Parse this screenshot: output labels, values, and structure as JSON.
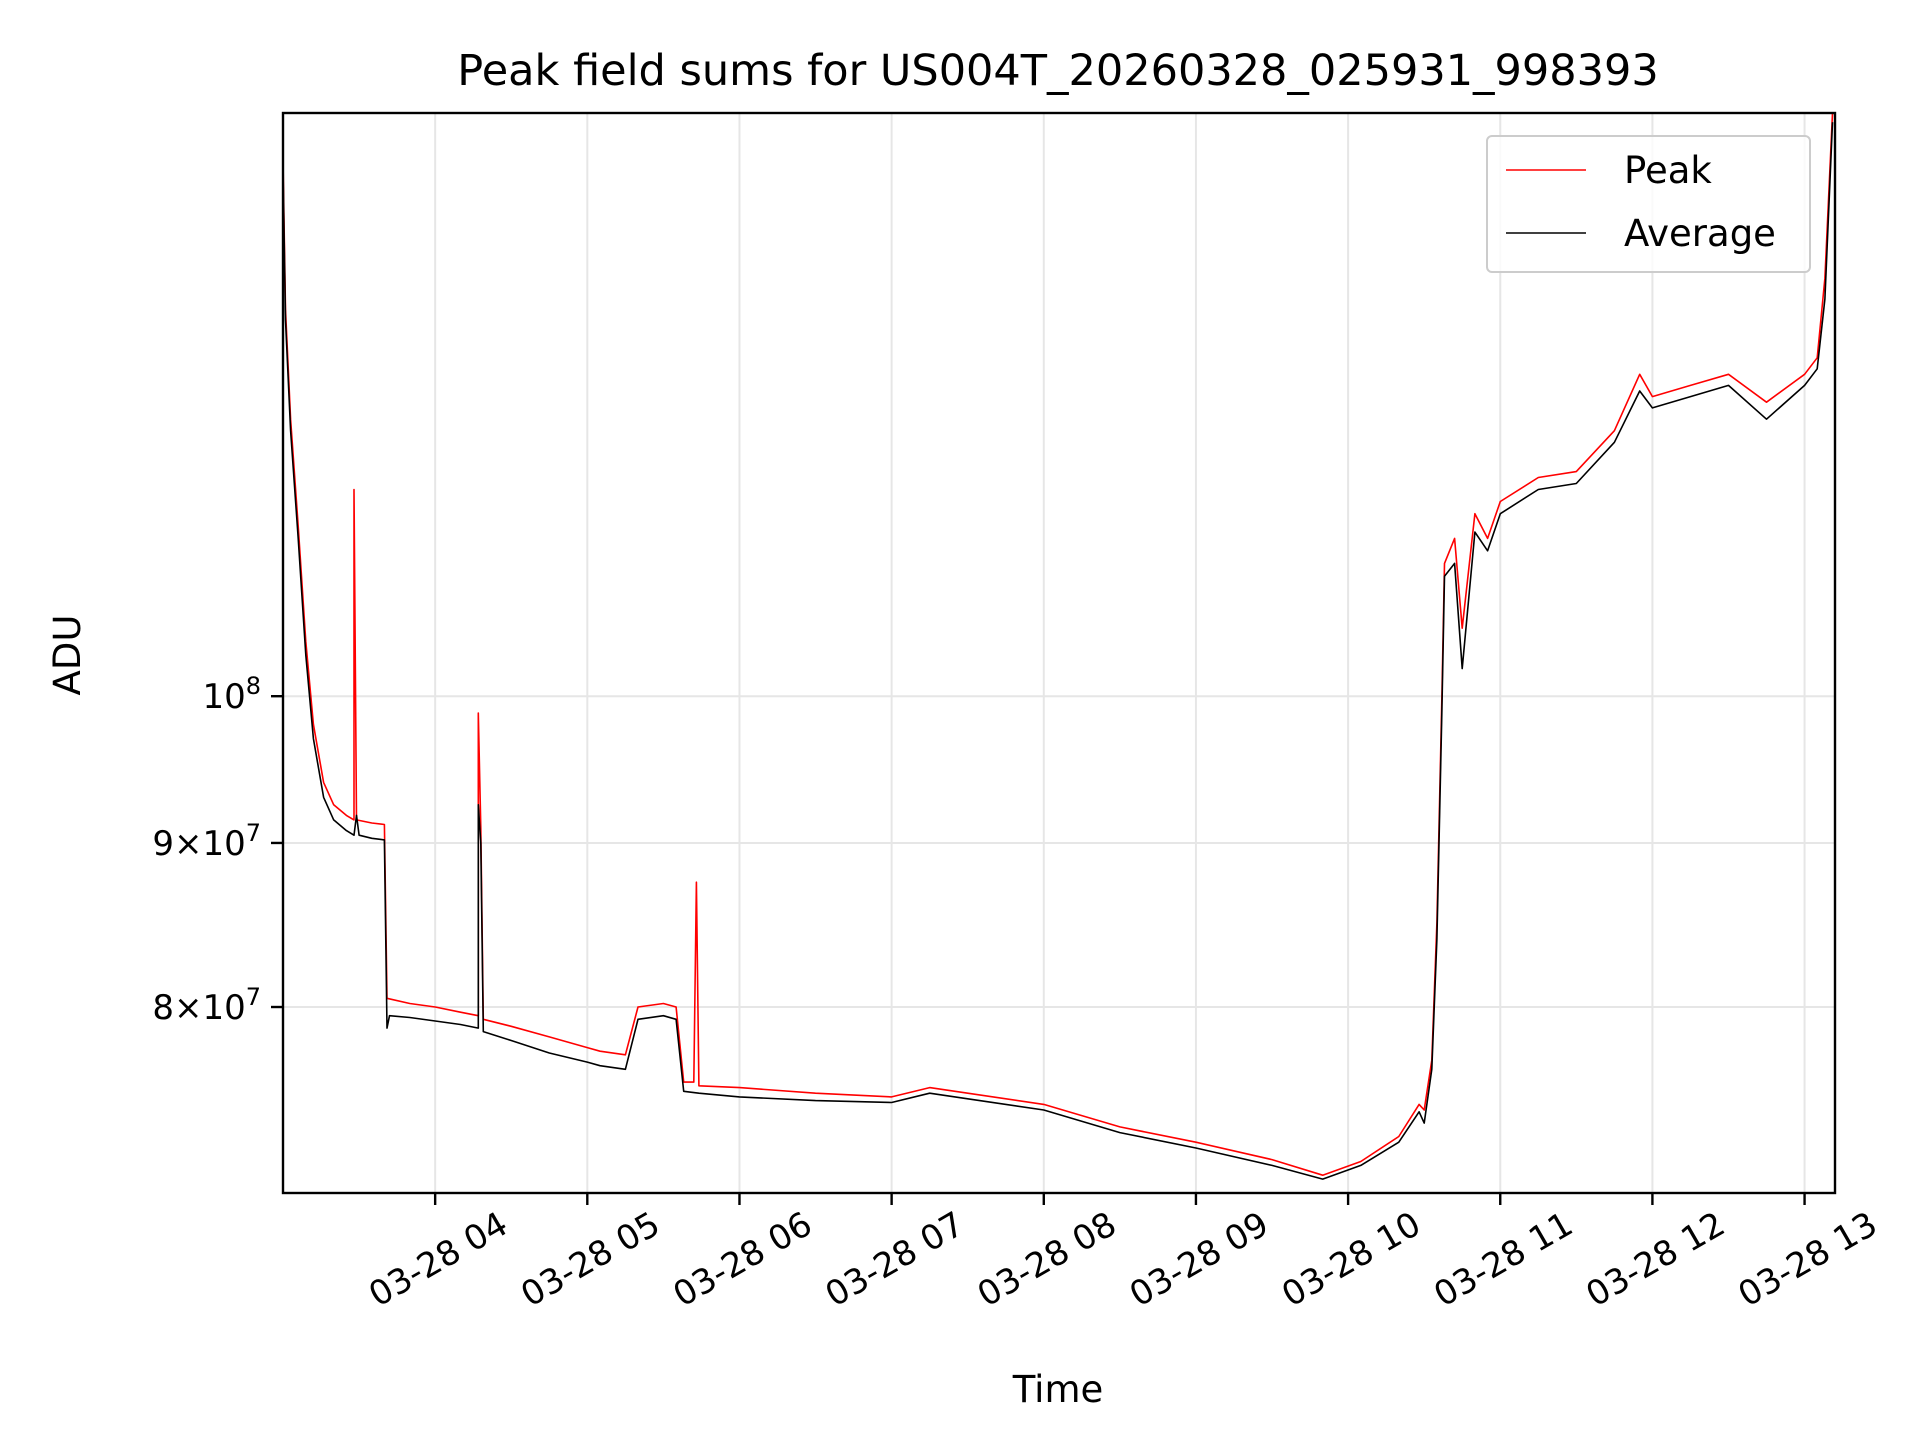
{
  "chart_data": {
    "type": "line",
    "title": "Peak field sums for US004T_20260328_025931_998393",
    "xlabel": "Time",
    "ylabel": "ADU",
    "yscale": "log",
    "xlim": [
      "2026-03-28 03:00",
      "2026-03-28 13:12"
    ],
    "ylim": [
      70000000,
      152000000
    ],
    "grid": true,
    "legend_position": "top-right",
    "x_ticks": [
      {
        "t": "2026-03-28 04:00",
        "label": "03-28 04"
      },
      {
        "t": "2026-03-28 05:00",
        "label": "03-28 05"
      },
      {
        "t": "2026-03-28 06:00",
        "label": "03-28 06"
      },
      {
        "t": "2026-03-28 07:00",
        "label": "03-28 07"
      },
      {
        "t": "2026-03-28 08:00",
        "label": "03-28 08"
      },
      {
        "t": "2026-03-28 09:00",
        "label": "03-28 09"
      },
      {
        "t": "2026-03-28 10:00",
        "label": "03-28 10"
      },
      {
        "t": "2026-03-28 11:00",
        "label": "03-28 11"
      },
      {
        "t": "2026-03-28 12:00",
        "label": "03-28 12"
      },
      {
        "t": "2026-03-28 13:00",
        "label": "03-28 13"
      }
    ],
    "y_ticks": [
      {
        "value": 80000000,
        "coef": "8",
        "times": "×",
        "base": "10",
        "exp": "7"
      },
      {
        "value": 90000000,
        "coef": "9",
        "times": "×",
        "base": "10",
        "exp": "7"
      },
      {
        "value": 100000000,
        "coef": "",
        "times": "",
        "base": "10",
        "exp": "8"
      }
    ],
    "series": [
      {
        "name": "Peak",
        "color": "#ff0000",
        "points": [
          [
            "2026-03-28 03:00",
            147000000
          ],
          [
            "2026-03-28 03:01",
            132000000
          ],
          [
            "2026-03-28 03:03",
            122000000
          ],
          [
            "2026-03-28 03:06",
            113000000
          ],
          [
            "2026-03-28 03:09",
            104000000
          ],
          [
            "2026-03-28 03:12",
            98000000
          ],
          [
            "2026-03-28 03:16",
            94000000
          ],
          [
            "2026-03-28 03:20",
            92500000
          ],
          [
            "2026-03-28 03:25",
            91800000
          ],
          [
            "2026-03-28 03:28",
            91500000
          ],
          [
            "2026-03-28 03:28",
            116000000
          ],
          [
            "2026-03-28 03:29",
            91500000
          ],
          [
            "2026-03-28 03:35",
            91300000
          ],
          [
            "2026-03-28 03:40",
            91200000
          ],
          [
            "2026-03-28 03:41",
            80500000
          ],
          [
            "2026-03-28 03:50",
            80200000
          ],
          [
            "2026-03-28 04:00",
            80000000
          ],
          [
            "2026-03-28 04:10",
            79700000
          ],
          [
            "2026-03-28 04:17",
            79500000
          ],
          [
            "2026-03-28 04:17",
            98800000
          ],
          [
            "2026-03-28 04:18",
            91000000
          ],
          [
            "2026-03-28 04:19",
            79300000
          ],
          [
            "2026-03-28 04:30",
            78900000
          ],
          [
            "2026-03-28 04:45",
            78300000
          ],
          [
            "2026-03-28 05:00",
            77700000
          ],
          [
            "2026-03-28 05:05",
            77500000
          ],
          [
            "2026-03-28 05:15",
            77300000
          ],
          [
            "2026-03-28 05:20",
            80000000
          ],
          [
            "2026-03-28 05:30",
            80200000
          ],
          [
            "2026-03-28 05:35",
            80000000
          ],
          [
            "2026-03-28 05:38",
            75800000
          ],
          [
            "2026-03-28 05:42",
            75800000
          ],
          [
            "2026-03-28 05:43",
            87500000
          ],
          [
            "2026-03-28 05:44",
            75600000
          ],
          [
            "2026-03-28 06:00",
            75500000
          ],
          [
            "2026-03-28 06:30",
            75200000
          ],
          [
            "2026-03-28 07:00",
            75000000
          ],
          [
            "2026-03-28 07:15",
            75500000
          ],
          [
            "2026-03-28 07:30",
            75200000
          ],
          [
            "2026-03-28 08:00",
            74600000
          ],
          [
            "2026-03-28 08:30",
            73400000
          ],
          [
            "2026-03-28 09:00",
            72600000
          ],
          [
            "2026-03-28 09:30",
            71700000
          ],
          [
            "2026-03-28 09:50",
            70900000
          ],
          [
            "2026-03-28 10:05",
            71600000
          ],
          [
            "2026-03-28 10:20",
            72900000
          ],
          [
            "2026-03-28 10:28",
            74600000
          ],
          [
            "2026-03-28 10:30",
            74300000
          ],
          [
            "2026-03-28 10:33",
            77000000
          ],
          [
            "2026-03-28 10:35",
            85000000
          ],
          [
            "2026-03-28 10:37",
            100000000
          ],
          [
            "2026-03-28 10:38",
            110000000
          ],
          [
            "2026-03-28 10:42",
            112000000
          ],
          [
            "2026-03-28 10:45",
            105000000
          ],
          [
            "2026-03-28 10:50",
            114000000
          ],
          [
            "2026-03-28 10:55",
            112000000
          ],
          [
            "2026-03-28 11:00",
            115000000
          ],
          [
            "2026-03-28 11:15",
            117000000
          ],
          [
            "2026-03-28 11:30",
            117500000
          ],
          [
            "2026-03-28 11:45",
            121000000
          ],
          [
            "2026-03-28 11:55",
            126000000
          ],
          [
            "2026-03-28 12:00",
            124000000
          ],
          [
            "2026-03-28 12:15",
            125000000
          ],
          [
            "2026-03-28 12:30",
            126000000
          ],
          [
            "2026-03-28 12:45",
            123500000
          ],
          [
            "2026-03-28 13:00",
            126000000
          ],
          [
            "2026-03-28 13:05",
            127500000
          ],
          [
            "2026-03-28 13:08",
            135000000
          ],
          [
            "2026-03-28 13:11",
            152000000
          ]
        ]
      },
      {
        "name": "Average",
        "color": "#000000",
        "points": [
          [
            "2026-03-28 03:00",
            146000000
          ],
          [
            "2026-03-28 03:01",
            131000000
          ],
          [
            "2026-03-28 03:03",
            121000000
          ],
          [
            "2026-03-28 03:06",
            112000000
          ],
          [
            "2026-03-28 03:09",
            103000000
          ],
          [
            "2026-03-28 03:12",
            97000000
          ],
          [
            "2026-03-28 03:16",
            93000000
          ],
          [
            "2026-03-28 03:20",
            91500000
          ],
          [
            "2026-03-28 03:25",
            90800000
          ],
          [
            "2026-03-28 03:28",
            90500000
          ],
          [
            "2026-03-28 03:29",
            91800000
          ],
          [
            "2026-03-28 03:30",
            90500000
          ],
          [
            "2026-03-28 03:35",
            90300000
          ],
          [
            "2026-03-28 03:40",
            90200000
          ],
          [
            "2026-03-28 03:41",
            78800000
          ],
          [
            "2026-03-28 03:42",
            79500000
          ],
          [
            "2026-03-28 03:50",
            79400000
          ],
          [
            "2026-03-28 04:00",
            79200000
          ],
          [
            "2026-03-28 04:10",
            79000000
          ],
          [
            "2026-03-28 04:17",
            78800000
          ],
          [
            "2026-03-28 04:17",
            92500000
          ],
          [
            "2026-03-28 04:18",
            90000000
          ],
          [
            "2026-03-28 04:19",
            78600000
          ],
          [
            "2026-03-28 04:30",
            78100000
          ],
          [
            "2026-03-28 04:45",
            77400000
          ],
          [
            "2026-03-28 05:00",
            76900000
          ],
          [
            "2026-03-28 05:05",
            76700000
          ],
          [
            "2026-03-28 05:15",
            76500000
          ],
          [
            "2026-03-28 05:20",
            79300000
          ],
          [
            "2026-03-28 05:30",
            79500000
          ],
          [
            "2026-03-28 05:35",
            79300000
          ],
          [
            "2026-03-28 05:38",
            75300000
          ],
          [
            "2026-03-28 05:44",
            75200000
          ],
          [
            "2026-03-28 06:00",
            75000000
          ],
          [
            "2026-03-28 06:30",
            74800000
          ],
          [
            "2026-03-28 07:00",
            74700000
          ],
          [
            "2026-03-28 07:15",
            75200000
          ],
          [
            "2026-03-28 07:30",
            74900000
          ],
          [
            "2026-03-28 08:00",
            74300000
          ],
          [
            "2026-03-28 08:30",
            73100000
          ],
          [
            "2026-03-28 09:00",
            72300000
          ],
          [
            "2026-03-28 09:30",
            71400000
          ],
          [
            "2026-03-28 09:50",
            70700000
          ],
          [
            "2026-03-28 10:05",
            71400000
          ],
          [
            "2026-03-28 10:20",
            72600000
          ],
          [
            "2026-03-28 10:28",
            74200000
          ],
          [
            "2026-03-28 10:30",
            73600000
          ],
          [
            "2026-03-28 10:33",
            76500000
          ],
          [
            "2026-03-28 10:35",
            84000000
          ],
          [
            "2026-03-28 10:37",
            99000000
          ],
          [
            "2026-03-28 10:38",
            109000000
          ],
          [
            "2026-03-28 10:42",
            110000000
          ],
          [
            "2026-03-28 10:45",
            102000000
          ],
          [
            "2026-03-28 10:50",
            112500000
          ],
          [
            "2026-03-28 10:55",
            111000000
          ],
          [
            "2026-03-28 11:00",
            114000000
          ],
          [
            "2026-03-28 11:15",
            116000000
          ],
          [
            "2026-03-28 11:30",
            116500000
          ],
          [
            "2026-03-28 11:45",
            120000000
          ],
          [
            "2026-03-28 11:55",
            124500000
          ],
          [
            "2026-03-28 12:00",
            123000000
          ],
          [
            "2026-03-28 12:15",
            124000000
          ],
          [
            "2026-03-28 12:30",
            125000000
          ],
          [
            "2026-03-28 12:45",
            122000000
          ],
          [
            "2026-03-28 13:00",
            125000000
          ],
          [
            "2026-03-28 13:05",
            126500000
          ],
          [
            "2026-03-28 13:08",
            133000000
          ],
          [
            "2026-03-28 13:11",
            151000000
          ]
        ]
      }
    ]
  }
}
